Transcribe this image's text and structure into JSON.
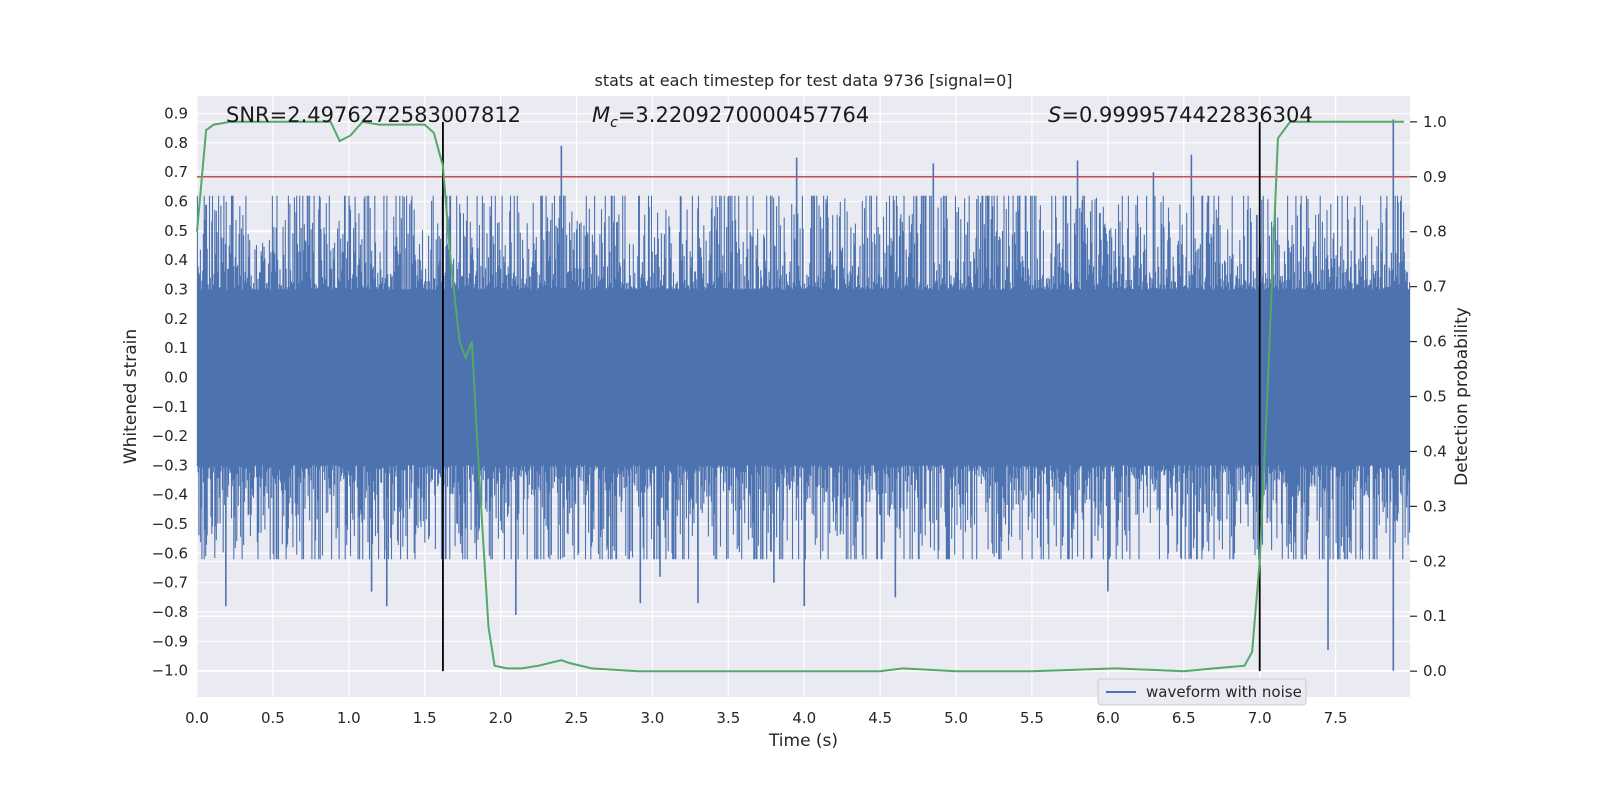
{
  "chart_data": {
    "type": "line",
    "title": "stats at each timestep for test data 9736 [signal=0]",
    "xlabel": "Time (s)",
    "ylabel": "Whitened strain",
    "ylabel_right": "Detection probability",
    "xlim": [
      0.0,
      7.99
    ],
    "ylim": [
      -1.09,
      0.96
    ],
    "ylim_right": [
      -0.047,
      1.047
    ],
    "grid": true,
    "x_ticks": [
      "0.0",
      "0.5",
      "1.0",
      "1.5",
      "2.0",
      "2.5",
      "3.0",
      "3.5",
      "4.0",
      "4.5",
      "5.0",
      "5.5",
      "6.0",
      "6.5",
      "7.0",
      "7.5"
    ],
    "y_ticks": [
      "0.9",
      "0.8",
      "0.7",
      "0.6",
      "0.5",
      "0.4",
      "0.3",
      "0.2",
      "0.1",
      "0.0",
      "−0.1",
      "−0.2",
      "−0.3",
      "−0.4",
      "−0.5",
      "−0.6",
      "−0.7",
      "−0.8",
      "−0.9",
      "−1.0"
    ],
    "y_tick_values": [
      0.9,
      0.8,
      0.7,
      0.6,
      0.5,
      0.4,
      0.3,
      0.2,
      0.1,
      0.0,
      -0.1,
      -0.2,
      -0.3,
      -0.4,
      -0.5,
      -0.6,
      -0.7,
      -0.8,
      -0.9,
      -1.0
    ],
    "y2_ticks": [
      "1.0",
      "0.9",
      "0.8",
      "0.7",
      "0.6",
      "0.5",
      "0.4",
      "0.3",
      "0.2",
      "0.1",
      "0.0"
    ],
    "y2_tick_values": [
      1.0,
      0.9,
      0.8,
      0.7,
      0.6,
      0.5,
      0.4,
      0.3,
      0.2,
      0.1,
      0.0
    ],
    "annotations": {
      "snr": "SNR=2.4976272583007812",
      "mc_symbol": "M",
      "mc_sub": "c",
      "mc_value": "=3.2209270000457764",
      "s_symbol": "S",
      "s_value": "=0.9999574422836304"
    },
    "waveform": {
      "name": "waveform with noise",
      "color": "#4c72b0",
      "band_upper": [
        0.3,
        0.45
      ],
      "band_lower": [
        -0.3,
        -0.45
      ],
      "peaks": [
        {
          "t": 0.19,
          "v": -0.78
        },
        {
          "t": 1.15,
          "v": -0.73
        },
        {
          "t": 1.25,
          "v": -0.78
        },
        {
          "t": 2.1,
          "v": -0.81
        },
        {
          "t": 2.4,
          "v": 0.79
        },
        {
          "t": 2.92,
          "v": -0.77
        },
        {
          "t": 3.05,
          "v": -0.68
        },
        {
          "t": 3.3,
          "v": -0.77
        },
        {
          "t": 3.8,
          "v": -0.7
        },
        {
          "t": 3.95,
          "v": 0.75
        },
        {
          "t": 4.0,
          "v": -0.78
        },
        {
          "t": 4.6,
          "v": -0.75
        },
        {
          "t": 4.85,
          "v": 0.73
        },
        {
          "t": 5.8,
          "v": 0.74
        },
        {
          "t": 6.0,
          "v": -0.73
        },
        {
          "t": 6.3,
          "v": 0.7
        },
        {
          "t": 6.55,
          "v": 0.76
        },
        {
          "t": 7.45,
          "v": -0.93
        },
        {
          "t": 7.88,
          "v": 0.88
        },
        {
          "t": 7.88,
          "v": -1.0
        }
      ]
    },
    "detection_probability": {
      "color": "#55a868",
      "x": [
        0.0,
        0.06,
        0.11,
        0.22,
        0.5,
        0.88,
        0.94,
        1.01,
        1.09,
        1.2,
        1.5,
        1.56,
        1.62,
        1.67,
        1.73,
        1.77,
        1.81,
        1.86,
        1.92,
        1.96,
        2.04,
        2.14,
        2.25,
        2.4,
        2.45,
        2.6,
        2.9,
        3.5,
        3.7,
        4.2,
        4.5,
        4.65,
        5.0,
        5.5,
        6.05,
        6.5,
        6.7,
        6.9,
        6.95,
        7.0,
        7.05,
        7.12,
        7.2,
        7.95
      ],
      "y": [
        0.8,
        0.985,
        0.995,
        1.0,
        1.0,
        1.0,
        0.965,
        0.975,
        1.0,
        0.995,
        0.995,
        0.98,
        0.92,
        0.75,
        0.6,
        0.57,
        0.6,
        0.35,
        0.08,
        0.01,
        0.005,
        0.005,
        0.01,
        0.02,
        0.015,
        0.005,
        0.0,
        0.0,
        0.0,
        0.0,
        0.0,
        0.005,
        0.0,
        0.0,
        0.005,
        0.0,
        0.005,
        0.01,
        0.035,
        0.2,
        0.5,
        0.97,
        1.0,
        1.0
      ]
    },
    "threshold": {
      "value": 0.9,
      "color": "#c44e52"
    },
    "vlines": [
      1.62,
      7.0
    ],
    "legend": {
      "label": "waveform with noise",
      "placement": "lower-right"
    }
  }
}
